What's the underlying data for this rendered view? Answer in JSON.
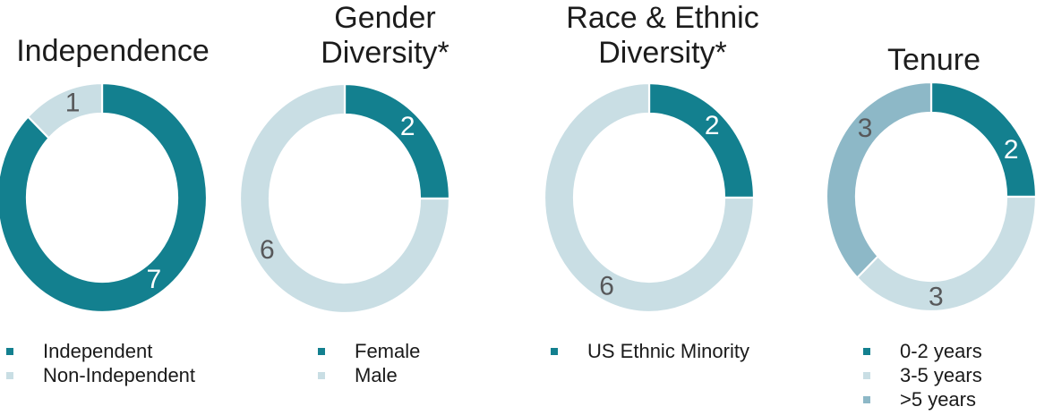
{
  "figure": {
    "background": "#FFFFFF"
  },
  "colors": {
    "teal": "#13808F",
    "light_blue": "#C9DEE4",
    "medium_blue": "#8DB8C7",
    "value_label_gray": "#57585A",
    "value_label_white": "#FFFFFF",
    "text": "#1C1C1C"
  },
  "chart_data": [
    {
      "type": "pie",
      "donut": true,
      "title": "Independence",
      "title_lines": [
        "Independence"
      ],
      "total": 8,
      "start_angle_deg": 0,
      "direction": "clockwise",
      "legend_position": "bottom-left",
      "slices": [
        {
          "label": "Independent",
          "value": 7,
          "color": "#13808F",
          "value_label_color": "#FFFFFF",
          "label_angle_deg": 145,
          "in_legend": true
        },
        {
          "label": "Non-Independent",
          "value": 1,
          "color": "#C9DEE4",
          "value_label_color": "#57585A",
          "label_angle_deg": 341,
          "in_legend": true
        }
      ]
    },
    {
      "type": "pie",
      "donut": true,
      "title": "Gender Diversity*",
      "title_lines": [
        "Gender",
        "Diversity*"
      ],
      "total": 8,
      "start_angle_deg": 0,
      "direction": "clockwise",
      "legend_position": "bottom-left",
      "slices": [
        {
          "label": "Female",
          "value": 2,
          "color": "#13808F",
          "value_label_color": "#FFFFFF",
          "label_angle_deg": 44,
          "in_legend": true
        },
        {
          "label": "Male",
          "value": 6,
          "color": "#C9DEE4",
          "value_label_color": "#57585A",
          "label_angle_deg": 239,
          "in_legend": true
        }
      ]
    },
    {
      "type": "pie",
      "donut": true,
      "title": "Race & Ethnic Diversity*",
      "title_lines": [
        "Race & Ethnic",
        "Diversity*"
      ],
      "total": 8,
      "start_angle_deg": 0,
      "direction": "clockwise",
      "legend_position": "bottom-left",
      "slices": [
        {
          "label": "US Ethnic Minority",
          "value": 2,
          "color": "#13808F",
          "value_label_color": "#FFFFFF",
          "label_angle_deg": 44,
          "in_legend": true
        },
        {
          "label": "",
          "value": 6,
          "color": "#C9DEE4",
          "value_label_color": "#57585A",
          "label_angle_deg": 208,
          "in_legend": false
        }
      ]
    },
    {
      "type": "pie",
      "donut": true,
      "title": "Tenure",
      "title_lines": [
        "Tenure"
      ],
      "total": 8,
      "start_angle_deg": 0,
      "direction": "clockwise",
      "legend_position": "bottom-left",
      "slices": [
        {
          "label": "0-2 years",
          "value": 2,
          "color": "#13808F",
          "value_label_color": "#FFFFFF",
          "label_angle_deg": 62,
          "in_legend": true
        },
        {
          "label": "3-5 years",
          "value": 3,
          "color": "#C9DEE4",
          "value_label_color": "#57585A",
          "label_angle_deg": 177,
          "in_legend": true
        },
        {
          "label": ">5 years",
          "value": 3,
          "color": "#8DB8C7",
          "value_label_color": "#57585A",
          "label_angle_deg": 313,
          "in_legend": true
        }
      ]
    }
  ]
}
